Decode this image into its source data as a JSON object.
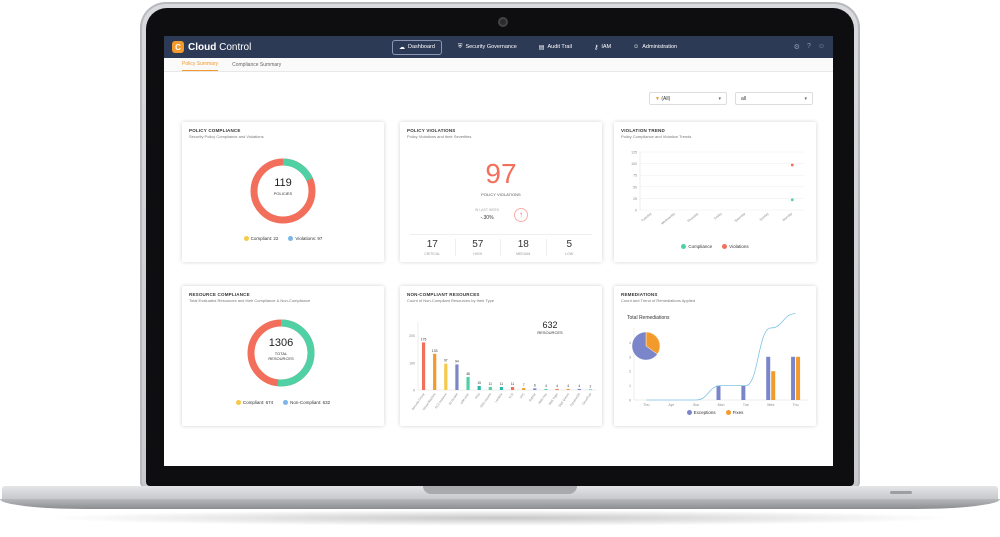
{
  "app": {
    "brand_bold": "Cloud",
    "brand_light": " Control",
    "logo_letter": "C"
  },
  "nav": [
    {
      "label": "Dashboard",
      "icon": "cloud-icon",
      "glyph": "☁",
      "active": true
    },
    {
      "label": "Security Governance",
      "icon": "shield-icon",
      "glyph": "⛨",
      "active": false
    },
    {
      "label": "Audit Trail",
      "icon": "clipboard-icon",
      "glyph": "▤",
      "active": false
    },
    {
      "label": "IAM",
      "icon": "key-icon",
      "glyph": "⚷",
      "active": false
    },
    {
      "label": "Administration",
      "icon": "user-icon",
      "glyph": "☺",
      "active": false
    }
  ],
  "tabs": [
    {
      "label": "Policy Summary",
      "active": true
    },
    {
      "label": "Compliance Summary",
      "active": false
    }
  ],
  "filters": {
    "cloud": "(All)",
    "account": "all"
  },
  "colors": {
    "compliant": "#4fd1a5",
    "violation": "#f26f5c",
    "accent": "#f39a2c",
    "nav_bg": "#2d3a55"
  },
  "policy_compliance": {
    "title": "POLICY COMPLIANCE",
    "subtitle": "Security Policy Compliance and Violations",
    "total": "119",
    "total_label": "POLICIES",
    "compliant_label": "Compliant",
    "compliant_value": 22,
    "violations_label": "Violations",
    "violations_value": 97
  },
  "policy_violations": {
    "title": "POLICY VIOLATIONS",
    "subtitle": "Policy Violations and their Severities",
    "total": "97",
    "total_label": "POLICY VIOLATIONS",
    "change_label": "IN LAST WEEK",
    "change_value": "-.30%",
    "severities": [
      {
        "value": "17",
        "label": "CRITICAL"
      },
      {
        "value": "57",
        "label": "HIGH"
      },
      {
        "value": "18",
        "label": "MEDIUM"
      },
      {
        "value": "5",
        "label": "LOW"
      }
    ]
  },
  "violation_trend": {
    "title": "VIOLATION TREND",
    "subtitle": "Policy Compliance and Violation Trends",
    "legend": [
      "Compliance",
      "Violations"
    ]
  },
  "resource_compliance": {
    "title": "RESOURCE COMPLIANCE",
    "subtitle": "Total Evaluated Resources and their Compliance & Non-Compliance",
    "total": "1306",
    "total_label_1": "TOTAL",
    "total_label_2": "RESOURCES",
    "compliant_label": "Compliant",
    "compliant_value": 674,
    "noncompliant_label": "Non-Compliant",
    "noncompliant_value": 632
  },
  "noncompliant_resources": {
    "title": "NON-COMPLIANT RESOURCES",
    "subtitle": "Count of Non-Compliant Resources by their Type",
    "total": "632",
    "total_label": "RESOURCES"
  },
  "remediations": {
    "title": "REMEDIATIONS",
    "subtitle": "Count and Trend of Remediations Applied",
    "pie_title": "Total Remediations",
    "legend": [
      "Exceptions",
      "Fixes"
    ]
  },
  "chart_data": [
    {
      "type": "line",
      "title": "",
      "ylabel": "",
      "ylim": [
        0,
        125
      ],
      "y_ticks": [
        "125",
        "100",
        "75",
        "50",
        "25",
        "0"
      ],
      "x": [
        "Tuesday",
        "Wednesday",
        "Thursday",
        "Friday",
        "Saturday",
        "Sunday",
        "Monday"
      ],
      "series": [
        {
          "name": "Compliance",
          "values": [
            null,
            null,
            null,
            null,
            null,
            null,
            22
          ]
        },
        {
          "name": "Violations",
          "values": [
            null,
            null,
            null,
            null,
            null,
            null,
            97
          ]
        }
      ]
    },
    {
      "type": "bar",
      "title": "",
      "ylim": [
        0,
        250
      ],
      "y_ticks": [
        "200",
        "100",
        "0"
      ],
      "values": [
        175,
        133,
        97,
        94,
        48,
        15,
        11,
        11,
        11,
        7,
        6,
        4,
        4,
        4,
        4,
        2
      ],
      "value_labels": [
        "175",
        "133",
        "97",
        "94",
        "48",
        "15",
        "11",
        "11",
        "11",
        "7",
        "6",
        "4",
        "4",
        "4",
        "4",
        "2"
      ],
      "categories": [
        "Security Group",
        "Virtual Machine",
        "EC2 Instance",
        "S3 Bucket",
        "IAM User",
        "RDS",
        "EBS Volume",
        "Lambda",
        "ELB",
        "VPC",
        "Subnet",
        "KMS Key",
        "SNS Topic",
        "SQS Queue",
        "DynamoDB",
        "CloudTrail"
      ],
      "colors": [
        "#f26f5c",
        "#f39a2c",
        "#f7c948",
        "#7a86c9",
        "#4fd1a5",
        "#2ab7a9",
        "#4fd1a5",
        "#2ab7a9",
        "#f26f5c",
        "#f39a2c",
        "#7a86c9",
        "#4fd1a5",
        "#f26f5c",
        "#f39a2c",
        "#7a86c9",
        "#2ab7a9"
      ]
    },
    {
      "type": "bar",
      "title": "",
      "ylim": [
        0,
        5
      ],
      "y_ticks": [
        "4",
        "3",
        "2",
        "1",
        "0"
      ],
      "categories": [
        "Thu",
        "Apr",
        "Sun",
        "Mon",
        "Tue",
        "Wed",
        "Thu"
      ],
      "series": [
        {
          "name": "Exceptions",
          "values": [
            0,
            0,
            0,
            1,
            1,
            3,
            3
          ],
          "color": "#7a86c9"
        },
        {
          "name": "Fixes",
          "values": [
            0,
            0,
            0,
            0,
            0,
            2,
            3
          ],
          "color": "#f39a2c"
        }
      ],
      "pie": {
        "values": [
          35,
          65
        ],
        "colors": [
          "#f39a2c",
          "#7a86c9"
        ]
      }
    }
  ]
}
